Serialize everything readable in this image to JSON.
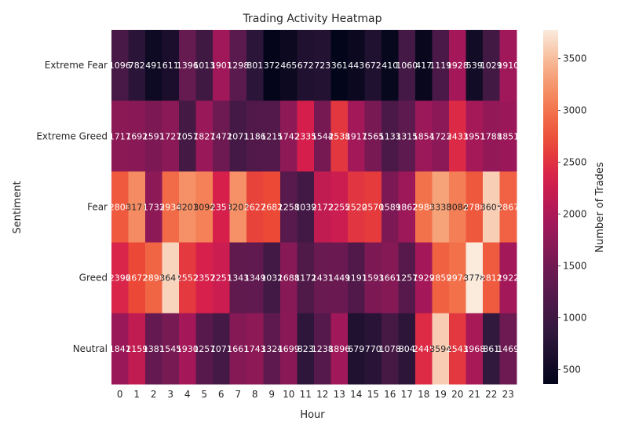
{
  "chart_data": {
    "type": "heatmap",
    "title": "Trading Activity Heatmap",
    "xlabel": "Hour",
    "ylabel": "Sentiment",
    "x": [
      0,
      1,
      2,
      3,
      4,
      5,
      6,
      7,
      8,
      9,
      10,
      11,
      12,
      13,
      14,
      15,
      16,
      17,
      18,
      19,
      20,
      21,
      22,
      23
    ],
    "y": [
      "Extreme Fear",
      "Extreme Greed",
      "Fear",
      "Greed",
      "Neutral"
    ],
    "values": [
      [
        1096,
        782,
        491,
        611,
        1396,
        1013,
        1901,
        1298,
        801,
        372,
        465,
        672,
        723,
        361,
        443,
        672,
        410,
        1060,
        417,
        1119,
        1928,
        539,
        1029,
        1910
      ],
      [
        1717,
        1692,
        1591,
        1727,
        1057,
        1827,
        1472,
        1071,
        1186,
        1215,
        1742,
        2335,
        1544,
        2538,
        1917,
        1565,
        1133,
        1315,
        1854,
        1723,
        2433,
        1951,
        1788,
        1851
      ],
      [
        2808,
        3171,
        1733,
        2934,
        3201,
        3094,
        2351,
        3207,
        2627,
        2682,
        1258,
        1039,
        2172,
        2255,
        2520,
        2570,
        1589,
        1862,
        2988,
        3338,
        3084,
        2788,
        3605,
        2867
      ],
      [
        2396,
        2672,
        2898,
        3641,
        2552,
        2357,
        2251,
        1343,
        1349,
        1032,
        1688,
        1172,
        1431,
        1449,
        1191,
        1593,
        1661,
        1257,
        1929,
        2859,
        2974,
        3778,
        2812,
        1922
      ],
      [
        1841,
        2159,
        1381,
        1545,
        1930,
        1257,
        1071,
        1661,
        1743,
        1324,
        1699,
        823,
        1238,
        1896,
        679,
        770,
        1078,
        804,
        2445,
        3594,
        2543,
        1968,
        861,
        1469
      ]
    ],
    "colorbar": {
      "label": "Number of Trades",
      "ticks": [
        500,
        1000,
        1500,
        2000,
        2500,
        3000,
        3500
      ],
      "min": 361,
      "max": 3778
    }
  }
}
